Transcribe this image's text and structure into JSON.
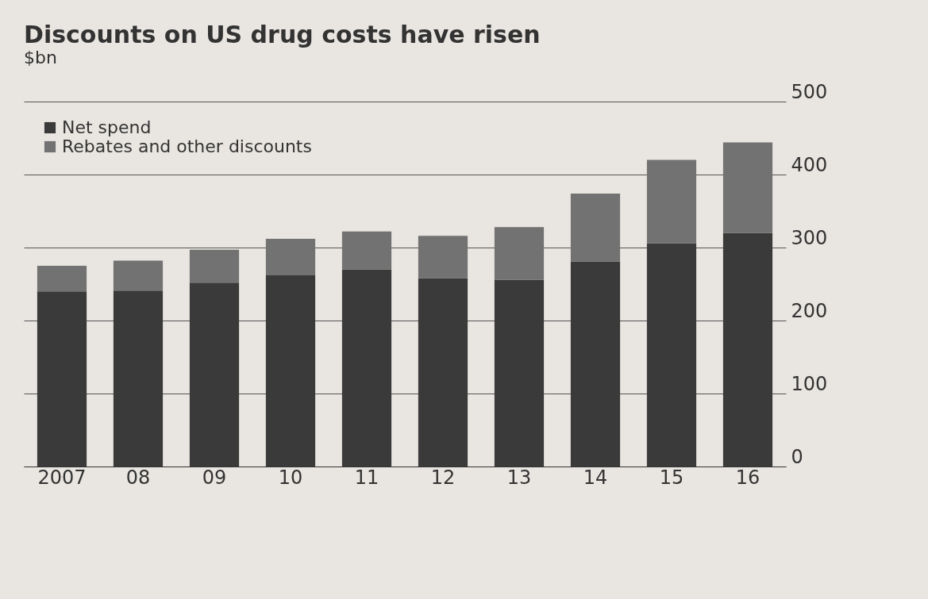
{
  "chart_data": {
    "type": "bar",
    "title": "Discounts on US drug costs have risen",
    "subtitle": "$bn",
    "categories": [
      "2007",
      "08",
      "09",
      "10",
      "11",
      "12",
      "13",
      "14",
      "15",
      "16"
    ],
    "series": [
      {
        "name": "Net spend",
        "color": "#3a3a3a",
        "values": [
          240,
          241,
          252,
          262,
          270,
          258,
          256,
          281,
          306,
          320
        ]
      },
      {
        "name": "Rebates and other discounts",
        "color": "#727272",
        "values": [
          35,
          41,
          45,
          50,
          52,
          58,
          72,
          93,
          114,
          124
        ]
      }
    ],
    "stacked": true,
    "ylim": [
      0,
      500
    ],
    "yticks": [
      0,
      100,
      200,
      300,
      400,
      500
    ],
    "grid": "y",
    "legend": "top left"
  }
}
